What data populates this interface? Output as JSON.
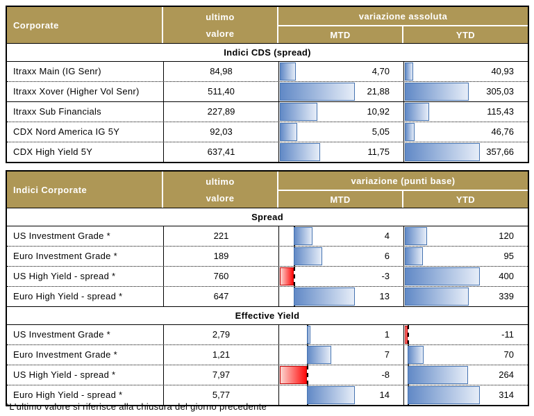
{
  "colors": {
    "header_bg": "#AE9756",
    "bar_blue_dark": "#6189C6",
    "bar_blue_light": "#E6EDF8",
    "bar_blue_border": "#4472B0",
    "bar_red_dark": "#FF0A0A",
    "bar_red_light": "#FCD5D0",
    "bar_red_border": "#C00000"
  },
  "footnote": "*L'ultimo valore si riferisce alla chiusura del giorno precedente",
  "tables": [
    {
      "title": "Corporate",
      "value_header_line1": "ultimo",
      "value_header_line2": "valore",
      "variation_header": "variazione assoluta",
      "mtd_label": "MTD",
      "ytd_label": "YTD",
      "sections": [
        {
          "name": "Indici CDS (spread)",
          "mtd_range": {
            "min": 0,
            "max": 21.88
          },
          "ytd_range": {
            "min": 0,
            "max": 357.66
          },
          "rows": [
            {
              "label": "Itraxx Main (IG Senr)",
              "value": "84,98",
              "mtd": 4.7,
              "mtd_text": "4,70",
              "ytd": 40.93,
              "ytd_text": "40,93"
            },
            {
              "label": "Itraxx Xover (Higher Vol Senr)",
              "value": "511,40",
              "mtd": 21.88,
              "mtd_text": "21,88",
              "ytd": 305.03,
              "ytd_text": "305,03"
            },
            {
              "label": "Itraxx Sub Financials",
              "value": "227,89",
              "mtd": 10.92,
              "mtd_text": "10,92",
              "ytd": 115.43,
              "ytd_text": "115,43"
            },
            {
              "label": "CDX Nord America IG 5Y",
              "value": "92,03",
              "mtd": 5.05,
              "mtd_text": "5,05",
              "ytd": 46.76,
              "ytd_text": "46,76"
            },
            {
              "label": "CDX High Yield 5Y",
              "value": "637,41",
              "mtd": 11.75,
              "mtd_text": "11,75",
              "ytd": 357.66,
              "ytd_text": "357,66"
            }
          ]
        }
      ]
    },
    {
      "title": "Indici Corporate",
      "value_header_line1": "ultimo",
      "value_header_line2": "valore",
      "variation_header": "variazione (punti base)",
      "mtd_label": "MTD",
      "ytd_label": "YTD",
      "sections": [
        {
          "name": "Spread",
          "mtd_range": {
            "min": -3,
            "max": 13
          },
          "ytd_range": {
            "min": 0,
            "max": 400
          },
          "rows": [
            {
              "label": "US Investment Grade *",
              "value": "221",
              "mtd": 4,
              "mtd_text": "4",
              "ytd": 120,
              "ytd_text": "120"
            },
            {
              "label": "Euro Investment Grade *",
              "value": "189",
              "mtd": 6,
              "mtd_text": "6",
              "ytd": 95,
              "ytd_text": "95"
            },
            {
              "label": "US High Yield - spread *",
              "value": "760",
              "mtd": -3,
              "mtd_text": "-3",
              "ytd": 400,
              "ytd_text": "400"
            },
            {
              "label": "Euro High Yield - spread *",
              "value": "647",
              "mtd": 13,
              "mtd_text": "13",
              "ytd": 339,
              "ytd_text": "339"
            }
          ]
        },
        {
          "name": "Effective Yield",
          "mtd_range": {
            "min": -8,
            "max": 14
          },
          "ytd_range": {
            "min": -11,
            "max": 314
          },
          "rows": [
            {
              "label": "US Investment Grade *",
              "value": "2,79",
              "mtd": 1,
              "mtd_text": "1",
              "ytd": -11,
              "ytd_text": "-11"
            },
            {
              "label": "Euro Investment Grade *",
              "value": "1,21",
              "mtd": 7,
              "mtd_text": "7",
              "ytd": 70,
              "ytd_text": "70"
            },
            {
              "label": "US High Yield - spread *",
              "value": "7,97",
              "mtd": -8,
              "mtd_text": "-8",
              "ytd": 264,
              "ytd_text": "264"
            },
            {
              "label": "Euro High Yield - spread *",
              "value": "5,77",
              "mtd": 14,
              "mtd_text": "14",
              "ytd": 314,
              "ytd_text": "314"
            }
          ]
        }
      ]
    }
  ]
}
